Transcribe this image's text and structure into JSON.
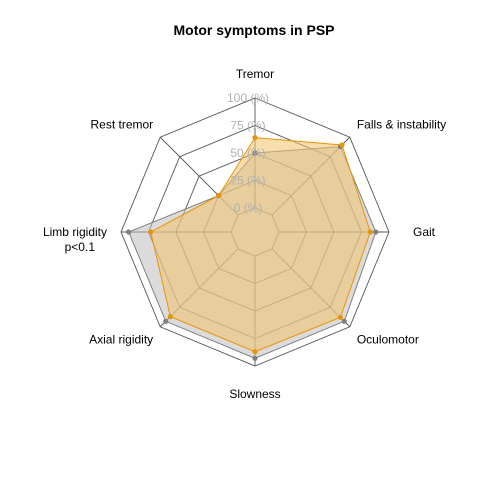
{
  "chart_data": {
    "type": "radar",
    "title": "Motor symptoms in PSP",
    "axes": [
      {
        "label": "Tremor",
        "note": ""
      },
      {
        "label": "Falls & instability",
        "note": ""
      },
      {
        "label": "Gait",
        "note": ""
      },
      {
        "label": "Oculomotor",
        "note": ""
      },
      {
        "label": "Slowness",
        "note": ""
      },
      {
        "label": "Axial rigidity",
        "note": ""
      },
      {
        "label": "Limb rigidity",
        "note": "p<0.1"
      },
      {
        "label": "Rest tremor",
        "note": ""
      }
    ],
    "rlim": [
      0,
      100
    ],
    "ticks": [
      "0 (%)",
      "25 (%)",
      "50 (%)",
      "75 (%)",
      "100 (%)"
    ],
    "series": [
      {
        "name": "",
        "color": "#808080",
        "fill": "#bdbdbd",
        "values": [
          50,
          88,
          88,
          93,
          93,
          93,
          93,
          25
        ]
      },
      {
        "name": "",
        "color": "#e8940a",
        "fill": "#f2c26a",
        "values": [
          64,
          90,
          83,
          88,
          87,
          87,
          73,
          25
        ]
      }
    ]
  }
}
